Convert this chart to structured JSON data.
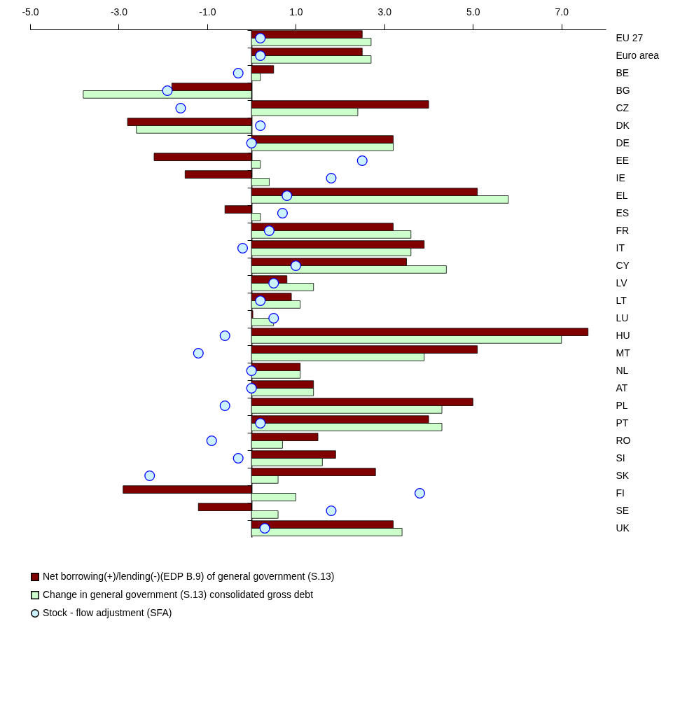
{
  "chart_data": {
    "type": "bar",
    "orientation": "horizontal",
    "legend": "bottom",
    "grid": false,
    "marker": "circle",
    "categories": [
      "EU 27",
      "Euro area",
      "BE",
      "BG",
      "CZ",
      "DK",
      "DE",
      "EE",
      "IE",
      "EL",
      "ES",
      "FR",
      "IT",
      "CY",
      "LV",
      "LT",
      "LU",
      "HU",
      "MT",
      "NL",
      "AT",
      "PL",
      "PT",
      "RO",
      "SI",
      "SK",
      "FI",
      "SE",
      "UK"
    ],
    "xlim": [
      -5,
      8
    ],
    "xticks": [
      {
        "value": -5,
        "label": "-5.0"
      },
      {
        "value": -3,
        "label": "-3.0"
      },
      {
        "value": -1,
        "label": "-1.0"
      },
      {
        "value": 1,
        "label": "1.0"
      },
      {
        "value": 3,
        "label": "3.0"
      },
      {
        "value": 5,
        "label": "5.0"
      },
      {
        "value": 7,
        "label": "7.0"
      }
    ],
    "series": [
      {
        "name": "Net borrowing(+)/lending(-)(EDP B.9) of general government (S.13)",
        "type": "bar",
        "color": "#800000",
        "values": [
          2.5,
          2.5,
          0.5,
          -1.8,
          4.0,
          -2.8,
          3.2,
          -2.2,
          -1.5,
          5.1,
          -0.6,
          3.2,
          3.9,
          3.5,
          0.8,
          0.9,
          0.03,
          7.6,
          5.1,
          1.1,
          1.4,
          5.0,
          4.0,
          1.5,
          1.9,
          2.8,
          -2.9,
          -1.2,
          3.2
        ]
      },
      {
        "name": "Change in general government (S.13) consolidated gross debt",
        "type": "bar",
        "color": "#ccffcc",
        "values": [
          2.7,
          2.7,
          0.2,
          -3.8,
          2.4,
          -2.6,
          3.2,
          0.2,
          0.4,
          5.8,
          0.2,
          3.6,
          3.6,
          4.4,
          1.4,
          1.1,
          0.5,
          7.0,
          3.9,
          1.1,
          1.4,
          4.3,
          4.3,
          0.7,
          1.6,
          0.6,
          1.0,
          0.6,
          3.4
        ]
      },
      {
        "name": "Stock - flow adjustment (SFA)",
        "type": "scatter",
        "color": "#ccf2ff",
        "values": [
          0.2,
          0.2,
          -0.3,
          -1.9,
          -1.6,
          0.2,
          0.0,
          2.5,
          1.8,
          0.8,
          0.7,
          0.4,
          -0.2,
          1.0,
          0.5,
          0.2,
          0.5,
          -0.6,
          -1.2,
          0.0,
          0.0,
          -0.6,
          0.2,
          -0.9,
          -0.3,
          -2.3,
          3.8,
          1.8,
          0.3
        ]
      }
    ]
  }
}
